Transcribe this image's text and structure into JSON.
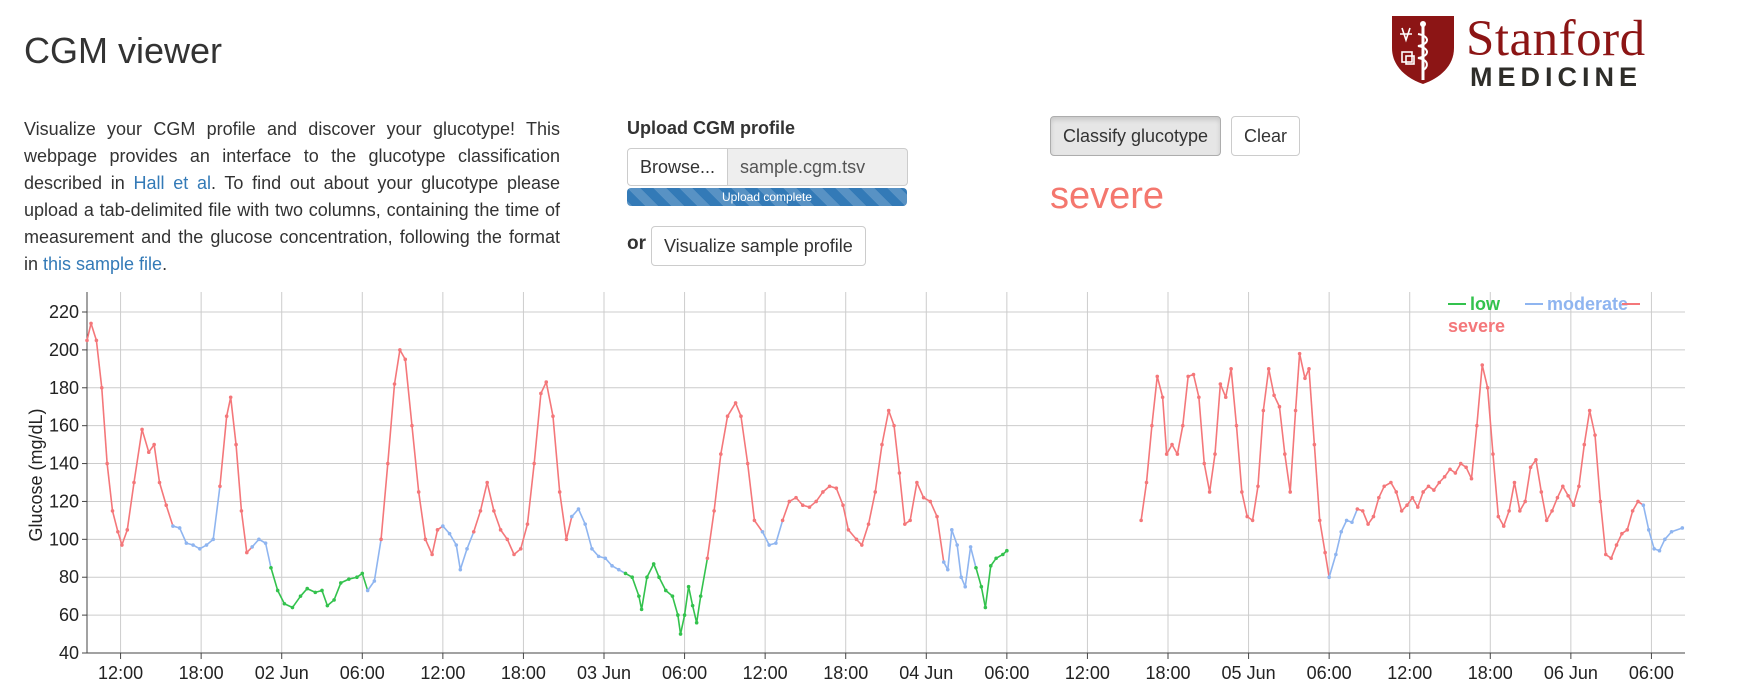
{
  "header": {
    "title": "CGM viewer"
  },
  "logo": {
    "word1": "Stanford",
    "word2": "MEDICINE"
  },
  "intro": {
    "part1": "Visualize your CGM profile and discover your glucotype! This webpage provides an interface to the glucotype classification described in ",
    "link1": "Hall et al",
    "part2": ". To find out about your glucotype please upload a tab-delimited file with two columns, containing the time of measurement and the glucose concentration, following the format in ",
    "link2": "this sample file",
    "part3": "."
  },
  "upload": {
    "label": "Upload CGM profile",
    "browse_label": "Browse...",
    "file_name": "sample.cgm.tsv",
    "progress_text": "Upload complete",
    "progress_fraction": 1.0,
    "or_label": "or",
    "sample_button": "Visualize sample profile"
  },
  "actions": {
    "classify_label": "Classify glucotype",
    "clear_label": "Clear"
  },
  "result": {
    "glucotype": "severe",
    "color": "#f4776e"
  },
  "chart_data": {
    "type": "line",
    "title": "",
    "ylabel": "Glucose (mg/dL)",
    "xlabel": "",
    "ylim": [
      40,
      220
    ],
    "yticks": [
      40,
      60,
      80,
      100,
      120,
      140,
      160,
      180,
      200,
      220
    ],
    "x_unit": "hours since 2019-06-01 00:00",
    "xlim": [
      9.5,
      128.5
    ],
    "xticks": [
      {
        "x": 12,
        "label": "12:00"
      },
      {
        "x": 18,
        "label": "18:00"
      },
      {
        "x": 24,
        "label": "02 Jun"
      },
      {
        "x": 30,
        "label": "06:00"
      },
      {
        "x": 36,
        "label": "12:00"
      },
      {
        "x": 42,
        "label": "18:00"
      },
      {
        "x": 48,
        "label": "03 Jun"
      },
      {
        "x": 54,
        "label": "06:00"
      },
      {
        "x": 60,
        "label": "12:00"
      },
      {
        "x": 66,
        "label": "18:00"
      },
      {
        "x": 72,
        "label": "04 Jun"
      },
      {
        "x": 78,
        "label": "06:00"
      },
      {
        "x": 84,
        "label": "12:00"
      },
      {
        "x": 90,
        "label": "18:00"
      },
      {
        "x": 96,
        "label": "05 Jun"
      },
      {
        "x": 102,
        "label": "06:00"
      },
      {
        "x": 108,
        "label": "12:00"
      },
      {
        "x": 114,
        "label": "18:00"
      },
      {
        "x": 120,
        "label": "06 Jun"
      },
      {
        "x": 126,
        "label": "06:00"
      }
    ],
    "grid": true,
    "legend_placement": "top-right",
    "series": [
      {
        "name": "low",
        "color": "#33c24d"
      },
      {
        "name": "moderate",
        "color": "#8fb5f0"
      },
      {
        "name": "severe",
        "color": "#f4777a"
      }
    ],
    "points": [
      [
        9.5,
        205,
        "s"
      ],
      [
        9.8,
        214,
        "s"
      ],
      [
        10.2,
        205,
        "s"
      ],
      [
        10.6,
        180,
        "s"
      ],
      [
        11.0,
        140,
        "s"
      ],
      [
        11.4,
        115,
        "s"
      ],
      [
        11.8,
        104,
        "s"
      ],
      [
        12.1,
        97,
        "s"
      ],
      [
        12.5,
        105,
        "s"
      ],
      [
        13.0,
        130,
        "s"
      ],
      [
        13.6,
        158,
        "s"
      ],
      [
        14.1,
        146,
        "s"
      ],
      [
        14.5,
        150,
        "s"
      ],
      [
        14.9,
        130,
        "s"
      ],
      [
        15.4,
        118,
        "s"
      ],
      [
        15.9,
        107,
        "m"
      ],
      [
        16.4,
        106,
        "m"
      ],
      [
        16.9,
        98,
        "m"
      ],
      [
        17.4,
        97,
        "m"
      ],
      [
        17.9,
        95,
        "m"
      ],
      [
        18.4,
        97,
        "m"
      ],
      [
        18.9,
        100,
        "m"
      ],
      [
        19.4,
        128,
        "s"
      ],
      [
        19.9,
        165,
        "s"
      ],
      [
        20.2,
        175,
        "s"
      ],
      [
        20.6,
        150,
        "s"
      ],
      [
        21.0,
        115,
        "s"
      ],
      [
        21.4,
        93,
        "s"
      ],
      [
        21.8,
        96,
        "m"
      ],
      [
        22.3,
        100,
        "m"
      ],
      [
        22.8,
        98,
        "m"
      ],
      [
        23.2,
        85,
        "l"
      ],
      [
        23.7,
        73,
        "l"
      ],
      [
        24.2,
        66,
        "l"
      ],
      [
        24.8,
        64,
        "l"
      ],
      [
        25.4,
        70,
        "l"
      ],
      [
        25.9,
        74,
        "l"
      ],
      [
        26.5,
        72,
        "l"
      ],
      [
        27.0,
        73,
        "l"
      ],
      [
        27.4,
        65,
        "l"
      ],
      [
        27.9,
        68,
        "l"
      ],
      [
        28.4,
        77,
        "l"
      ],
      [
        29.0,
        79,
        "l"
      ],
      [
        29.6,
        80,
        "l"
      ],
      [
        30.0,
        82,
        "l"
      ],
      [
        30.4,
        73,
        "m"
      ],
      [
        30.9,
        78,
        "m"
      ],
      [
        31.4,
        100,
        "s"
      ],
      [
        31.9,
        140,
        "s"
      ],
      [
        32.4,
        182,
        "s"
      ],
      [
        32.8,
        200,
        "s"
      ],
      [
        33.2,
        195,
        "s"
      ],
      [
        33.7,
        160,
        "s"
      ],
      [
        34.2,
        125,
        "s"
      ],
      [
        34.7,
        100,
        "s"
      ],
      [
        35.2,
        92,
        "s"
      ],
      [
        35.6,
        105,
        "s"
      ],
      [
        36.0,
        107,
        "m"
      ],
      [
        36.5,
        103,
        "m"
      ],
      [
        37.0,
        97,
        "m"
      ],
      [
        37.3,
        84,
        "m"
      ],
      [
        37.8,
        95,
        "m"
      ],
      [
        38.3,
        104,
        "s"
      ],
      [
        38.8,
        115,
        "s"
      ],
      [
        39.3,
        130,
        "s"
      ],
      [
        39.8,
        115,
        "s"
      ],
      [
        40.3,
        105,
        "s"
      ],
      [
        40.8,
        100,
        "s"
      ],
      [
        41.3,
        92,
        "s"
      ],
      [
        41.8,
        95,
        "s"
      ],
      [
        42.3,
        108,
        "s"
      ],
      [
        42.8,
        140,
        "s"
      ],
      [
        43.3,
        177,
        "s"
      ],
      [
        43.7,
        183,
        "s"
      ],
      [
        44.2,
        165,
        "s"
      ],
      [
        44.7,
        125,
        "s"
      ],
      [
        45.2,
        100,
        "s"
      ],
      [
        45.6,
        112,
        "m"
      ],
      [
        46.1,
        116,
        "m"
      ],
      [
        46.6,
        108,
        "m"
      ],
      [
        47.1,
        95,
        "m"
      ],
      [
        47.6,
        91,
        "m"
      ],
      [
        48.1,
        90,
        "m"
      ],
      [
        48.6,
        86,
        "m"
      ],
      [
        49.1,
        84,
        "m"
      ],
      [
        49.6,
        82,
        "l"
      ],
      [
        50.1,
        80,
        "l"
      ],
      [
        50.6,
        70,
        "l"
      ],
      [
        50.8,
        63,
        "l"
      ],
      [
        51.2,
        80,
        "l"
      ],
      [
        51.7,
        87,
        "l"
      ],
      [
        52.1,
        80,
        "l"
      ],
      [
        52.6,
        73,
        "l"
      ],
      [
        53.1,
        70,
        "l"
      ],
      [
        53.5,
        60,
        "l"
      ],
      [
        53.7,
        50,
        "l"
      ],
      [
        54.0,
        60,
        "l"
      ],
      [
        54.3,
        75,
        "l"
      ],
      [
        54.6,
        65,
        "l"
      ],
      [
        54.9,
        56,
        "l"
      ],
      [
        55.2,
        70,
        "l"
      ],
      [
        55.7,
        90,
        "s"
      ],
      [
        56.2,
        115,
        "s"
      ],
      [
        56.7,
        145,
        "s"
      ],
      [
        57.2,
        165,
        "s"
      ],
      [
        57.8,
        172,
        "s"
      ],
      [
        58.2,
        165,
        "s"
      ],
      [
        58.7,
        140,
        "s"
      ],
      [
        59.2,
        110,
        "s"
      ],
      [
        59.8,
        104,
        "m"
      ],
      [
        60.3,
        97,
        "m"
      ],
      [
        60.8,
        98,
        "m"
      ],
      [
        61.3,
        110,
        "s"
      ],
      [
        61.8,
        120,
        "s"
      ],
      [
        62.3,
        122,
        "s"
      ],
      [
        62.8,
        118,
        "s"
      ],
      [
        63.3,
        117,
        "s"
      ],
      [
        63.8,
        120,
        "s"
      ],
      [
        64.3,
        125,
        "s"
      ],
      [
        64.8,
        128,
        "s"
      ],
      [
        65.3,
        127,
        "s"
      ],
      [
        65.8,
        118,
        "s"
      ],
      [
        66.2,
        105,
        "s"
      ],
      [
        66.8,
        100,
        "s"
      ],
      [
        67.2,
        97,
        "s"
      ],
      [
        67.7,
        108,
        "s"
      ],
      [
        68.2,
        125,
        "s"
      ],
      [
        68.7,
        150,
        "s"
      ],
      [
        69.2,
        168,
        "s"
      ],
      [
        69.6,
        160,
        "s"
      ],
      [
        70.0,
        135,
        "s"
      ],
      [
        70.4,
        108,
        "s"
      ],
      [
        70.8,
        110,
        "s"
      ],
      [
        71.3,
        130,
        "s"
      ],
      [
        71.8,
        122,
        "s"
      ],
      [
        72.3,
        120,
        "s"
      ],
      [
        72.8,
        112,
        "s"
      ],
      [
        73.3,
        88,
        "m"
      ],
      [
        73.6,
        84,
        "m"
      ],
      [
        73.9,
        105,
        "m"
      ],
      [
        74.3,
        97,
        "m"
      ],
      [
        74.6,
        80,
        "m"
      ],
      [
        74.9,
        75,
        "m"
      ],
      [
        75.3,
        96,
        "m"
      ],
      [
        75.7,
        85,
        "l"
      ],
      [
        76.1,
        75,
        "l"
      ],
      [
        76.4,
        64,
        "l"
      ],
      [
        76.8,
        86,
        "l"
      ],
      [
        77.2,
        90,
        "l"
      ],
      [
        77.7,
        92,
        "l"
      ],
      [
        78.0,
        94,
        "l"
      ],
      [
        88.0,
        110,
        "s"
      ],
      [
        88.4,
        130,
        "s"
      ],
      [
        88.8,
        160,
        "s"
      ],
      [
        89.2,
        186,
        "s"
      ],
      [
        89.6,
        175,
        "s"
      ],
      [
        89.9,
        145,
        "s"
      ],
      [
        90.3,
        150,
        "s"
      ],
      [
        90.7,
        145,
        "s"
      ],
      [
        91.1,
        160,
        "s"
      ],
      [
        91.5,
        186,
        "s"
      ],
      [
        91.9,
        187,
        "s"
      ],
      [
        92.3,
        175,
        "s"
      ],
      [
        92.7,
        140,
        "s"
      ],
      [
        93.1,
        125,
        "s"
      ],
      [
        93.5,
        145,
        "s"
      ],
      [
        93.9,
        182,
        "s"
      ],
      [
        94.3,
        175,
        "s"
      ],
      [
        94.7,
        190,
        "s"
      ],
      [
        95.1,
        160,
        "s"
      ],
      [
        95.5,
        125,
        "s"
      ],
      [
        95.9,
        112,
        "s"
      ],
      [
        96.3,
        110,
        "s"
      ],
      [
        96.7,
        128,
        "s"
      ],
      [
        97.1,
        168,
        "s"
      ],
      [
        97.5,
        190,
        "s"
      ],
      [
        97.9,
        176,
        "s"
      ],
      [
        98.3,
        170,
        "s"
      ],
      [
        98.7,
        145,
        "s"
      ],
      [
        99.1,
        125,
        "s"
      ],
      [
        99.5,
        168,
        "s"
      ],
      [
        99.8,
        198,
        "s"
      ],
      [
        100.2,
        185,
        "s"
      ],
      [
        100.5,
        190,
        "s"
      ],
      [
        100.9,
        150,
        "s"
      ],
      [
        101.3,
        110,
        "s"
      ],
      [
        101.7,
        93,
        "s"
      ],
      [
        102.0,
        80,
        "m"
      ],
      [
        102.5,
        92,
        "m"
      ],
      [
        102.9,
        104,
        "m"
      ],
      [
        103.3,
        110,
        "m"
      ],
      [
        103.7,
        109,
        "m"
      ],
      [
        104.1,
        116,
        "s"
      ],
      [
        104.5,
        115,
        "s"
      ],
      [
        104.9,
        108,
        "s"
      ],
      [
        105.3,
        112,
        "s"
      ],
      [
        105.7,
        122,
        "s"
      ],
      [
        106.1,
        128,
        "s"
      ],
      [
        106.6,
        130,
        "s"
      ],
      [
        107.0,
        125,
        "s"
      ],
      [
        107.4,
        115,
        "s"
      ],
      [
        107.8,
        118,
        "s"
      ],
      [
        108.2,
        122,
        "s"
      ],
      [
        108.6,
        117,
        "s"
      ],
      [
        109.0,
        125,
        "s"
      ],
      [
        109.4,
        128,
        "s"
      ],
      [
        109.8,
        126,
        "s"
      ],
      [
        110.2,
        130,
        "s"
      ],
      [
        110.6,
        133,
        "s"
      ],
      [
        111.0,
        137,
        "s"
      ],
      [
        111.4,
        135,
        "s"
      ],
      [
        111.8,
        140,
        "s"
      ],
      [
        112.2,
        138,
        "s"
      ],
      [
        112.6,
        132,
        "s"
      ],
      [
        113.0,
        160,
        "s"
      ],
      [
        113.4,
        192,
        "s"
      ],
      [
        113.8,
        180,
        "s"
      ],
      [
        114.2,
        145,
        "s"
      ],
      [
        114.6,
        112,
        "s"
      ],
      [
        115.0,
        107,
        "s"
      ],
      [
        115.4,
        115,
        "s"
      ],
      [
        115.8,
        130,
        "s"
      ],
      [
        116.2,
        115,
        "s"
      ],
      [
        116.6,
        120,
        "s"
      ],
      [
        117.0,
        138,
        "s"
      ],
      [
        117.4,
        142,
        "s"
      ],
      [
        117.8,
        125,
        "s"
      ],
      [
        118.2,
        110,
        "s"
      ],
      [
        118.6,
        115,
        "s"
      ],
      [
        119.0,
        122,
        "s"
      ],
      [
        119.4,
        128,
        "s"
      ],
      [
        119.8,
        123,
        "s"
      ],
      [
        120.2,
        118,
        "s"
      ],
      [
        120.6,
        128,
        "s"
      ],
      [
        121.0,
        150,
        "s"
      ],
      [
        121.4,
        168,
        "s"
      ],
      [
        121.8,
        155,
        "s"
      ],
      [
        122.2,
        120,
        "s"
      ],
      [
        122.6,
        92,
        "s"
      ],
      [
        123.0,
        90,
        "s"
      ],
      [
        123.4,
        97,
        "s"
      ],
      [
        123.8,
        103,
        "s"
      ],
      [
        124.2,
        105,
        "s"
      ],
      [
        124.6,
        115,
        "s"
      ],
      [
        125.0,
        120,
        "s"
      ],
      [
        125.4,
        118,
        "m"
      ],
      [
        125.8,
        105,
        "m"
      ],
      [
        126.2,
        95,
        "m"
      ],
      [
        126.6,
        94,
        "m"
      ],
      [
        127.0,
        100,
        "m"
      ],
      [
        127.5,
        104,
        "m"
      ],
      [
        128.3,
        106,
        "m"
      ]
    ]
  }
}
